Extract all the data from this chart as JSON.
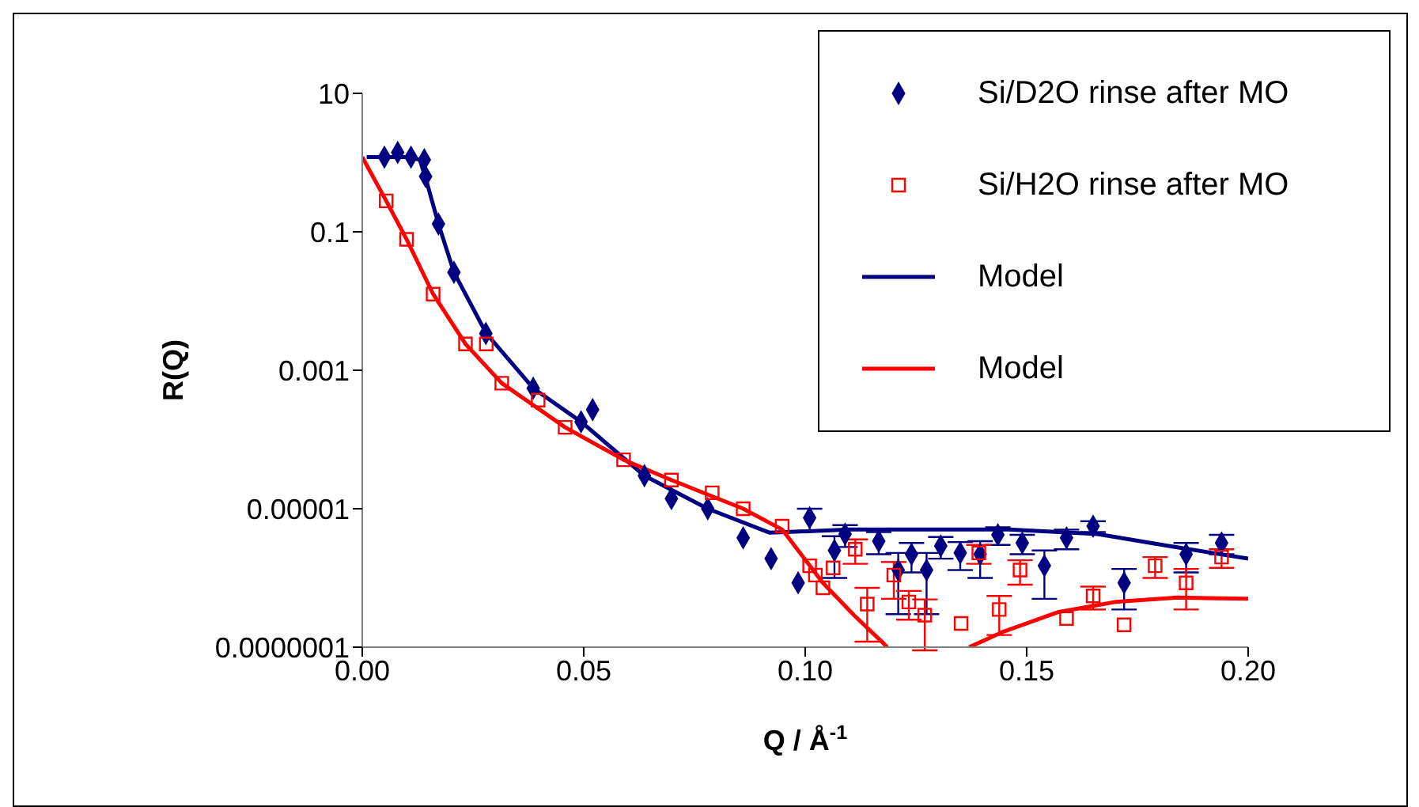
{
  "chart_data": {
    "type": "scatter",
    "xlabel": "Q / Å$^{-1}$",
    "ylabel": "R(Q)",
    "log": "y",
    "grid": false,
    "legend": "top right",
    "xlim": [
      0,
      0.2
    ],
    "xticks": [
      {
        "value": 0,
        "label": "0.00"
      },
      {
        "value": 0.05,
        "label": "0.05"
      },
      {
        "value": 0.1,
        "label": "0.10"
      },
      {
        "value": 0.15,
        "label": "0.15"
      },
      {
        "value": 0.2,
        "label": "0.20"
      }
    ],
    "ylim": [
      1e-07,
      10
    ],
    "yticks": [
      {
        "value": 10,
        "label": "10"
      },
      {
        "value": 0.1,
        "label": "0.1"
      },
      {
        "value": 0.001,
        "label": "0.001"
      },
      {
        "value": 1e-05,
        "label": "0.00001"
      },
      {
        "value": 1e-07,
        "label": "0.0000001"
      }
    ],
    "series": [
      {
        "name": "Si/D2O rinse after MO",
        "marker": "diamond",
        "color": "#000080",
        "x": [
          0.005,
          0.008,
          0.011,
          0.014,
          0.0143,
          0.0172,
          0.0207,
          0.0279,
          0.0386,
          0.0494,
          0.052,
          0.0637,
          0.0698,
          0.078,
          0.086,
          0.0923,
          0.0984,
          0.101,
          0.1066,
          0.109,
          0.1166,
          0.121,
          0.124,
          0.1274,
          0.1306,
          0.135,
          0.1395,
          0.1435,
          0.149,
          0.154,
          0.159,
          0.165,
          0.172,
          0.186,
          0.194
        ],
        "values": [
          1.2,
          1.4,
          1.2,
          1.1,
          0.63,
          0.13,
          0.026,
          0.0034,
          0.00055,
          0.00018,
          0.00027,
          3e-05,
          1.4e-05,
          1e-05,
          3.8e-06,
          1.9e-06,
          8.5e-07,
          7.4e-06,
          2.5e-06,
          4.3e-06,
          3.4e-06,
          1.3e-06,
          2.2e-06,
          1.3e-06,
          2.9e-06,
          2.3e-06,
          2.2e-06,
          4.2e-06,
          3.2e-06,
          1.5e-06,
          3.8e-06,
          5.6e-06,
          8.5e-07,
          2.2e-06,
          3.2e-06
        ],
        "errors": [
          null,
          null,
          null,
          null,
          null,
          null,
          null,
          null,
          null,
          null,
          null,
          null,
          null,
          null,
          null,
          null,
          null,
          2.6e-06,
          1.5e-06,
          1.5e-06,
          1.2e-06,
          1e-06,
          1e-06,
          1e-06,
          1e-06,
          1e-06,
          1.2e-06,
          1.2e-06,
          1e-06,
          1e-06,
          1.2e-06,
          1e-06,
          5e-07,
          1e-06,
          1e-06
        ]
      },
      {
        "name": "Si/H2O rinse after MO",
        "marker": "square",
        "color": "#ff0000",
        "x": [
          0.0054,
          0.01,
          0.016,
          0.0233,
          0.028,
          0.0315,
          0.0397,
          0.0458,
          0.059,
          0.0698,
          0.079,
          0.086,
          0.0948,
          0.101,
          0.1023,
          0.104,
          0.1063,
          0.1113,
          0.114,
          0.12,
          0.1234,
          0.127,
          0.1352,
          0.1392,
          0.1438,
          0.1485,
          0.159,
          0.165,
          0.172,
          0.179,
          0.186,
          0.194
        ],
        "values": [
          0.28,
          0.078,
          0.0126,
          0.0024,
          0.0024,
          0.00065,
          0.00037,
          0.00015,
          5.1e-05,
          2.6e-05,
          1.7e-05,
          1e-05,
          5.6e-06,
          1.5e-06,
          1.1e-06,
          7.2e-07,
          1.4e-06,
          2.6e-06,
          4.2e-07,
          1.1e-06,
          4.5e-07,
          2.9e-07,
          2.2e-07,
          2.3e-06,
          3.5e-07,
          1.3e-06,
          2.6e-07,
          5.5e-07,
          2.1e-07,
          1.5e-06,
          8.5e-07,
          2e-06
        ],
        "errors": [
          null,
          null,
          null,
          null,
          null,
          null,
          null,
          null,
          null,
          null,
          null,
          null,
          null,
          null,
          null,
          null,
          null,
          1e-06,
          3e-07,
          6e-07,
          2e-07,
          2e-07,
          null,
          7e-07,
          2e-07,
          5e-07,
          null,
          2e-07,
          null,
          5e-07,
          5e-07,
          6e-07
        ]
      },
      {
        "name": "Model",
        "type": "line",
        "marker": "none",
        "color": "#000080",
        "x": [
          0.001,
          0.005,
          0.01,
          0.013,
          0.0143,
          0.0172,
          0.0207,
          0.028,
          0.0386,
          0.0494,
          0.0637,
          0.078,
          0.092,
          0.11,
          0.128,
          0.146,
          0.166,
          0.182,
          0.2
        ],
        "values": [
          1.2,
          1.2,
          1.2,
          1.1,
          0.6,
          0.13,
          0.026,
          0.0034,
          0.00055,
          0.00018,
          3e-05,
          1e-05,
          4.5e-06,
          5e-06,
          5e-06,
          5e-06,
          4.3e-06,
          2.9e-06,
          1.9e-06
        ]
      },
      {
        "name": "Model",
        "type": "line",
        "marker": "none",
        "color": "#ff0000",
        "x": [
          0,
          0.0054,
          0.01,
          0.016,
          0.0233,
          0.0315,
          0.0458,
          0.059,
          0.0698,
          0.086,
          0.0948,
          0.104,
          0.111,
          0.1173,
          0.1185,
          0.128,
          0.137,
          0.145,
          0.157,
          0.17,
          0.184,
          0.2
        ],
        "values": [
          1.2,
          0.28,
          0.078,
          0.0126,
          0.0024,
          0.00065,
          0.00015,
          5.1e-05,
          2.6e-05,
          1e-05,
          5e-06,
          8.5e-07,
          2.9e-07,
          1.2e-07,
          1e-07,
          null,
          1e-07,
          1.7e-07,
          3.2e-07,
          4.5e-07,
          5.2e-07,
          5e-07
        ]
      }
    ]
  }
}
